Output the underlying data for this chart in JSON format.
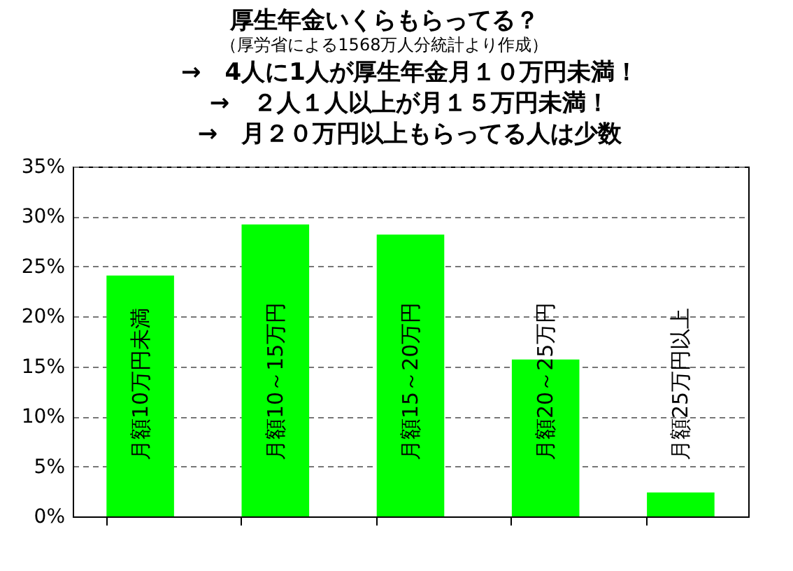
{
  "chart_data": {
    "type": "bar",
    "title": "厚生年金いくらもらってる？",
    "subtitle": "（厚労省による1568万人分統計より作成）",
    "annotations": [
      "→　4人に1人が厚生年金月１０万円未満！",
      "→　２人１人以上が月１５万円未満！",
      "→　月２０万円以上もらってる人は少数"
    ],
    "categories": [
      "月額10万円未満",
      "月額10～15万円",
      "月額15～20万円",
      "月額20～25万円",
      "月額25万円以上"
    ],
    "values": [
      24.1,
      29.2,
      28.2,
      15.7,
      2.4
    ],
    "color": "#00ff00",
    "ylim": [
      0,
      35
    ],
    "yticks": [
      {
        "value": 0,
        "label": "0%"
      },
      {
        "value": 5,
        "label": "5%"
      },
      {
        "value": 10,
        "label": "10%"
      },
      {
        "value": 15,
        "label": "15%"
      },
      {
        "value": 20,
        "label": "20%"
      },
      {
        "value": 25,
        "label": "25%"
      },
      {
        "value": 30,
        "label": "30%"
      },
      {
        "value": 35,
        "label": "35%"
      }
    ],
    "grid": "y",
    "tick_labels": "y"
  }
}
